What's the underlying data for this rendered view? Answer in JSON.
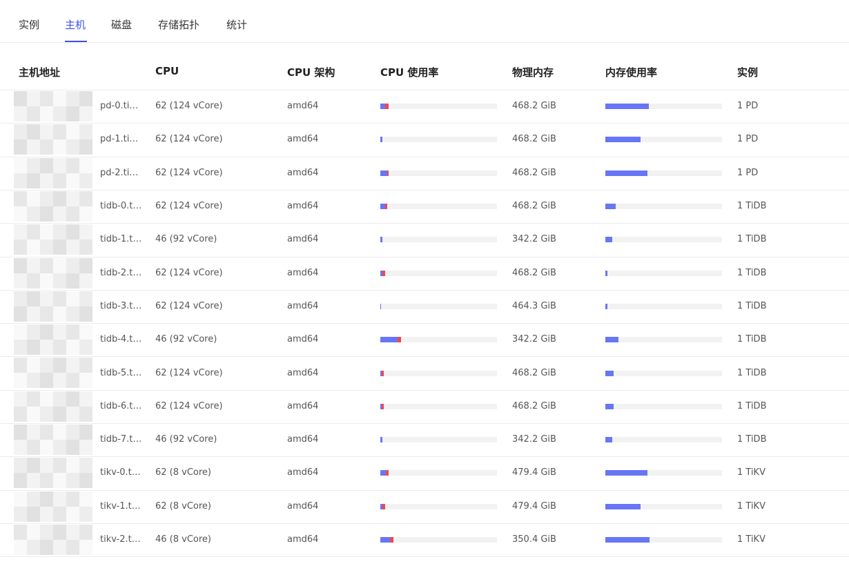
{
  "tabs": {
    "items": [
      "实例",
      "主机",
      "磁盘",
      "存储拓扑",
      "统计"
    ],
    "active": 1
  },
  "table": {
    "columns": [
      "主机地址",
      "CPU",
      "CPU 架构",
      "CPU 使用率",
      "物理内存",
      "内存使用率",
      "实例"
    ],
    "bar_lim": [
      0,
      100
    ],
    "rows": [
      {
        "host": "pd-0.ti…",
        "cpu": "62 (124 vCore)",
        "arch": "amd64",
        "cpu_user": 4,
        "cpu_sys": 3,
        "memory": "468.2 GiB",
        "mem_usage": 37,
        "instance": "1 PD"
      },
      {
        "host": "pd-1.ti…",
        "cpu": "62 (124 vCore)",
        "arch": "amd64",
        "cpu_user": 2,
        "cpu_sys": 0,
        "memory": "468.2 GiB",
        "mem_usage": 30,
        "instance": "1 PD"
      },
      {
        "host": "pd-2.ti…",
        "cpu": "62 (124 vCore)",
        "arch": "amd64",
        "cpu_user": 6,
        "cpu_sys": 1,
        "memory": "468.2 GiB",
        "mem_usage": 36,
        "instance": "1 PD"
      },
      {
        "host": "tidb-0.t…",
        "cpu": "62 (124 vCore)",
        "arch": "amd64",
        "cpu_user": 4,
        "cpu_sys": 2,
        "memory": "468.2 GiB",
        "mem_usage": 9,
        "instance": "1 TiDB"
      },
      {
        "host": "tidb-1.t…",
        "cpu": "46 (92 vCore)",
        "arch": "amd64",
        "cpu_user": 2,
        "cpu_sys": 0,
        "memory": "342.2 GiB",
        "mem_usage": 6,
        "instance": "1 TiDB"
      },
      {
        "host": "tidb-2.t…",
        "cpu": "62 (124 vCore)",
        "arch": "amd64",
        "cpu_user": 2,
        "cpu_sys": 2,
        "memory": "468.2 GiB",
        "mem_usage": 2,
        "instance": "1 TiDB"
      },
      {
        "host": "tidb-3.t…",
        "cpu": "62 (124 vCore)",
        "arch": "amd64",
        "cpu_user": 0.5,
        "cpu_sys": 0,
        "memory": "464.3 GiB",
        "mem_usage": 2,
        "instance": "1 TiDB"
      },
      {
        "host": "tidb-4.t…",
        "cpu": "46 (92 vCore)",
        "arch": "amd64",
        "cpu_user": 15,
        "cpu_sys": 3,
        "memory": "342.2 GiB",
        "mem_usage": 11,
        "instance": "1 TiDB"
      },
      {
        "host": "tidb-5.t…",
        "cpu": "62 (124 vCore)",
        "arch": "amd64",
        "cpu_user": 1,
        "cpu_sys": 2,
        "memory": "468.2 GiB",
        "mem_usage": 7,
        "instance": "1 TiDB"
      },
      {
        "host": "tidb-6.t…",
        "cpu": "62 (124 vCore)",
        "arch": "amd64",
        "cpu_user": 1,
        "cpu_sys": 2,
        "memory": "468.2 GiB",
        "mem_usage": 7,
        "instance": "1 TiDB"
      },
      {
        "host": "tidb-7.t…",
        "cpu": "46 (92 vCore)",
        "arch": "amd64",
        "cpu_user": 2,
        "cpu_sys": 0,
        "memory": "342.2 GiB",
        "mem_usage": 6,
        "instance": "1 TiDB"
      },
      {
        "host": "tikv-0.t…",
        "cpu": "62 (8 vCore)",
        "arch": "amd64",
        "cpu_user": 5,
        "cpu_sys": 2,
        "memory": "479.4 GiB",
        "mem_usage": 36,
        "instance": "1 TiKV"
      },
      {
        "host": "tikv-1.t…",
        "cpu": "62 (8 vCore)",
        "arch": "amd64",
        "cpu_user": 2,
        "cpu_sys": 2,
        "memory": "479.4 GiB",
        "mem_usage": 30,
        "instance": "1 TiKV"
      },
      {
        "host": "tikv-2.t…",
        "cpu": "46 (8 vCore)",
        "arch": "amd64",
        "cpu_user": 8,
        "cpu_sys": 3,
        "memory": "350.4 GiB",
        "mem_usage": 38,
        "instance": "1 TiKV"
      }
    ]
  }
}
